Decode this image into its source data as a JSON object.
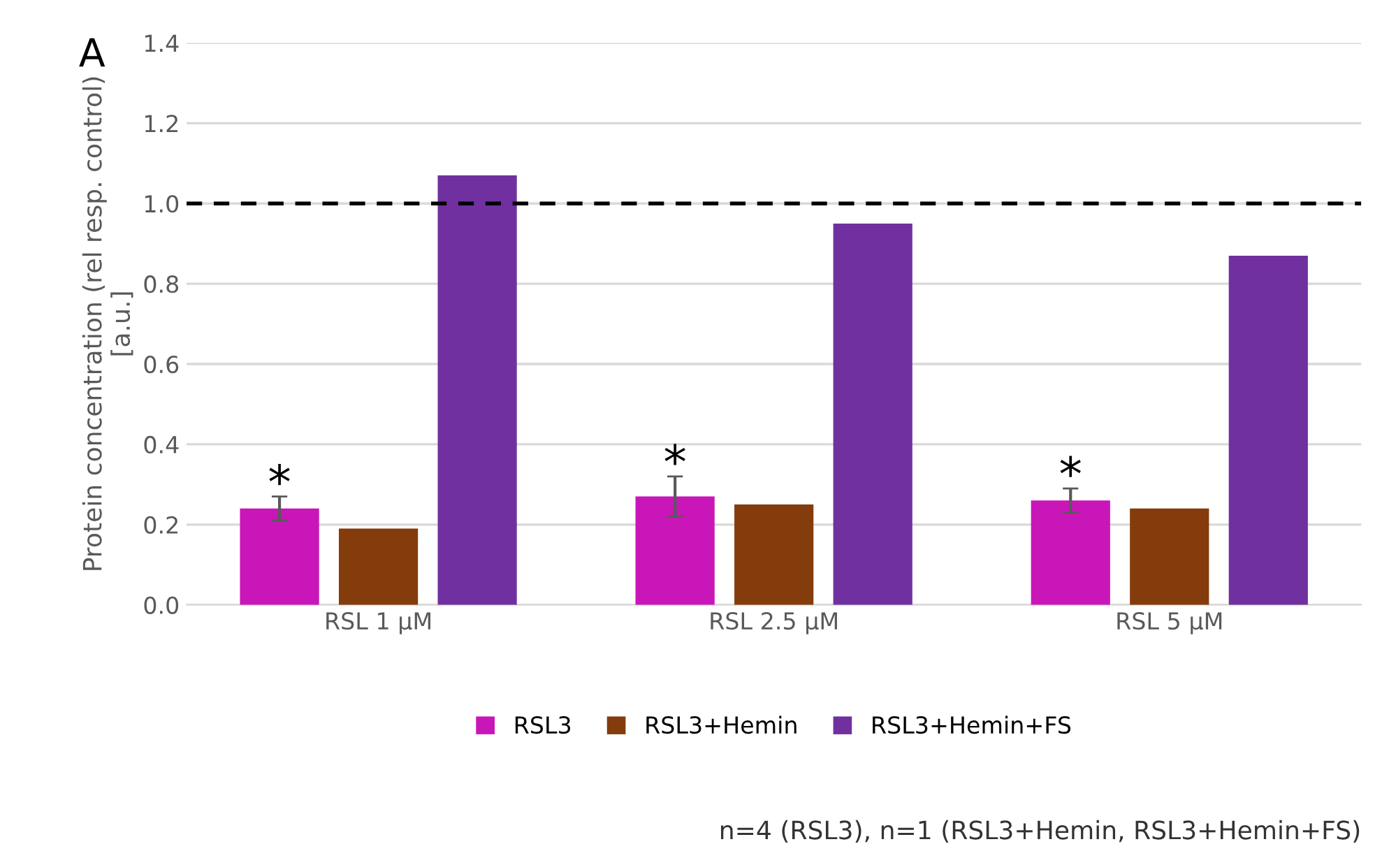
{
  "chart_data": {
    "type": "bar",
    "ylabel": "Protein concentration (rel resp. control)\n[a.u.]",
    "categories": [
      "RSL 1 µM",
      "RSL 2.5 µM",
      "RSL 5 µM"
    ],
    "series": [
      {
        "name": "RSL3",
        "color": "#c916b8",
        "values": [
          0.24,
          0.27,
          0.26
        ],
        "errors": [
          0.03,
          0.05,
          0.03
        ]
      },
      {
        "name": "RSL3+Hemin",
        "color": "#843c0c",
        "values": [
          0.19,
          0.25,
          0.24
        ]
      },
      {
        "name": "RSL3+Hemin+FS",
        "color": "#7030a0",
        "values": [
          1.07,
          0.95,
          0.87
        ]
      }
    ],
    "ylim": [
      0,
      1.4
    ],
    "yticks": [
      {
        "value": 0,
        "label": "0.0"
      },
      {
        "value": 0.2,
        "label": "0.2"
      },
      {
        "value": 0.4,
        "label": "0.4"
      },
      {
        "value": 0.6,
        "label": "0.6"
      },
      {
        "value": 0.8,
        "label": "0.8"
      },
      {
        "value": 1.0,
        "label": "1.0"
      },
      {
        "value": 1.2,
        "label": "1.2"
      },
      {
        "value": 1.4,
        "label": "1.4"
      }
    ],
    "grid": "y",
    "legend": "bottom",
    "ref_lines": [
      {
        "axis": "y",
        "value": 1.0,
        "color": "#000000",
        "line_style": "dashed"
      }
    ],
    "annotations": [
      "A",
      "*",
      "*",
      "*",
      "n=4 (RSL3), n=1 (RSL3+Hemin, RSL3+Hemin+FS)"
    ]
  }
}
